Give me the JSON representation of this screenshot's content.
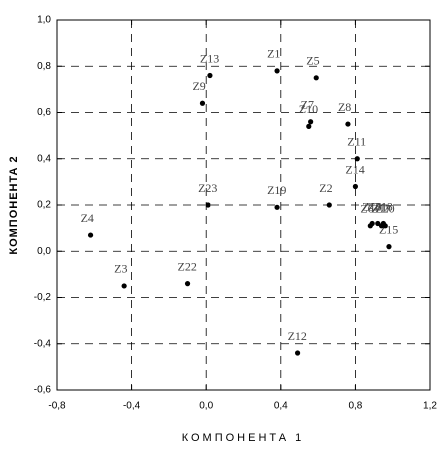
{
  "chart_data": {
    "type": "scatter",
    "x_label": "КОМПОНЕНТА 1",
    "y_label": "КОМПОНЕНТА 2",
    "labels": [
      "Z1",
      "Z2",
      "Z3",
      "Z4",
      "Z5",
      "Z6",
      "Z7",
      "Z8",
      "Z9",
      "Z10",
      "Z11",
      "Z12",
      "Z13",
      "Z14",
      "Z15",
      "Z16",
      "Z17",
      "Z18",
      "Z19",
      "Z20",
      "Z21",
      "Z22",
      "Z23"
    ],
    "x": [
      0.38,
      0.66,
      -0.44,
      -0.62,
      0.59,
      0.88,
      0.56,
      0.76,
      -0.02,
      0.55,
      0.81,
      0.49,
      0.02,
      0.8,
      0.98,
      0.89,
      0.94,
      0.95,
      0.38,
      0.96,
      0.92,
      -0.1,
      0.01
    ],
    "values": [
      0.78,
      0.2,
      -0.15,
      0.07,
      0.75,
      0.11,
      0.56,
      0.55,
      0.64,
      0.54,
      0.4,
      -0.44,
      0.76,
      0.28,
      0.02,
      0.12,
      0.11,
      0.12,
      0.19,
      0.11,
      0.12,
      -0.14,
      0.2
    ],
    "color": "#000000",
    "xlim": [
      -0.8,
      1.2
    ],
    "ylim": [
      -0.6,
      1.0
    ],
    "xticks": [
      {
        "value": -0.8,
        "label": "-0,8"
      },
      {
        "value": -0.4,
        "label": "-0,4"
      },
      {
        "value": 0,
        "label": "0,0"
      },
      {
        "value": 0.4,
        "label": "0,4"
      },
      {
        "value": 0.8,
        "label": "0,8"
      },
      {
        "value": 1.2,
        "label": "1,2"
      }
    ],
    "yticks": [
      {
        "value": -0.6,
        "label": "-0,6"
      },
      {
        "value": -0.4,
        "label": "-0,4"
      },
      {
        "value": -0.2,
        "label": "-0,2"
      },
      {
        "value": 0,
        "label": "0,0"
      },
      {
        "value": 0.2,
        "label": "0,2"
      },
      {
        "value": 0.4,
        "label": "0,4"
      },
      {
        "value": 0.6,
        "label": "0,6"
      },
      {
        "value": 0.8,
        "label": "0,8"
      },
      {
        "value": 1.0,
        "label": "1,0"
      }
    ],
    "grid": true
  }
}
